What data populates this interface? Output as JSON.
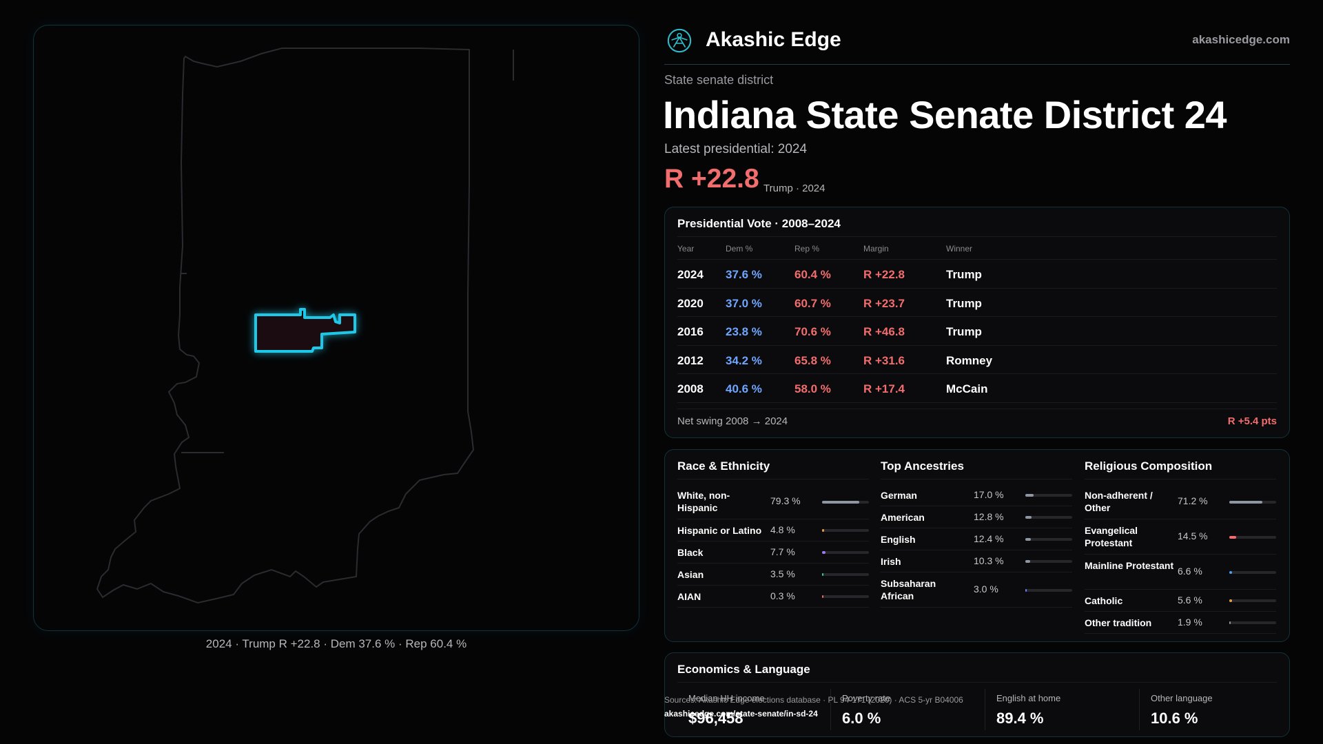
{
  "brand": {
    "name": "Akashic Edge",
    "url": "akashicedge.com"
  },
  "header": {
    "kicker": "State senate district",
    "title": "Indiana State Senate District 24",
    "latest": "Latest presidential: 2024",
    "margin": "R +22.8",
    "margin_sub": "Trump · 2024"
  },
  "map": {
    "caption": "2024 · Trump R +22.8 · Dem 37.6 % · Rep 60.4 %",
    "colors": {
      "outline": "#2b2b30",
      "district_stroke": "#1ec8e6",
      "district_fill": "#1a0c10"
    }
  },
  "presidential": {
    "title": "Presidential Vote · 2008–2024",
    "columns": [
      "Year",
      "Dem %",
      "Rep %",
      "Margin",
      "Winner"
    ],
    "rows": [
      {
        "year": "2024",
        "dem": "37.6 %",
        "rep": "60.4 %",
        "margin": "R +22.8",
        "winner": "Trump"
      },
      {
        "year": "2020",
        "dem": "37.0 %",
        "rep": "60.7 %",
        "margin": "R +23.7",
        "winner": "Trump"
      },
      {
        "year": "2016",
        "dem": "23.8 %",
        "rep": "70.6 %",
        "margin": "R +46.8",
        "winner": "Trump"
      },
      {
        "year": "2012",
        "dem": "34.2 %",
        "rep": "65.8 %",
        "margin": "R +31.6",
        "winner": "Romney"
      },
      {
        "year": "2008",
        "dem": "40.6 %",
        "rep": "58.0 %",
        "margin": "R +17.4",
        "winner": "McCain"
      }
    ],
    "swing_label": "Net swing 2008 → 2024",
    "swing_value": "R +5.4 pts"
  },
  "demographics": {
    "race": {
      "title": "Race & Ethnicity",
      "items": [
        {
          "label": "White, non-Hispanic",
          "pct": "79.3 %",
          "value": 79.3,
          "color": "#8f96a3",
          "tall": true
        },
        {
          "label": "Hispanic or Latino",
          "pct": "4.8 %",
          "value": 4.8,
          "color": "#e0a040",
          "tall": false
        },
        {
          "label": "Black",
          "pct": "7.7 %",
          "value": 7.7,
          "color": "#9a7cf0",
          "tall": false
        },
        {
          "label": "Asian",
          "pct": "3.5 %",
          "value": 3.5,
          "color": "#3ec9a0",
          "tall": false
        },
        {
          "label": "AIAN",
          "pct": "0.3 %",
          "value": 0.3,
          "color": "#e07060",
          "tall": false
        }
      ]
    },
    "ancestry": {
      "title": "Top Ancestries",
      "items": [
        {
          "label": "German",
          "pct": "17.0 %",
          "value": 17.0,
          "color": "#8f96a3",
          "tall": false
        },
        {
          "label": "American",
          "pct": "12.8 %",
          "value": 12.8,
          "color": "#8f96a3",
          "tall": false
        },
        {
          "label": "English",
          "pct": "12.4 %",
          "value": 12.4,
          "color": "#8f96a3",
          "tall": false
        },
        {
          "label": "Irish",
          "pct": "10.3 %",
          "value": 10.3,
          "color": "#8f96a3",
          "tall": false
        },
        {
          "label": "Subsaharan African",
          "pct": "3.0 %",
          "value": 3.0,
          "color": "#6f7df0",
          "tall": true
        }
      ]
    },
    "religion": {
      "title": "Religious Composition",
      "items": [
        {
          "label": "Non-adherent / Other",
          "pct": "71.2 %",
          "value": 71.2,
          "color": "#8f96a3",
          "tall": true
        },
        {
          "label": "Evangelical Protestant",
          "pct": "14.5 %",
          "value": 14.5,
          "color": "#f26d6d",
          "tall": true
        },
        {
          "label": "Mainline Protestant",
          "pct": "6.6 %",
          "value": 6.6,
          "color": "#4a9cf0",
          "tall": true
        },
        {
          "label": "Catholic",
          "pct": "5.6 %",
          "value": 5.6,
          "color": "#e0a040",
          "tall": false
        },
        {
          "label": "Other tradition",
          "pct": "1.9 %",
          "value": 1.9,
          "color": "#8f96a3",
          "tall": false
        }
      ]
    }
  },
  "economics": {
    "title": "Economics & Language",
    "cells": [
      {
        "label": "Median HH income",
        "value": "$96,458"
      },
      {
        "label": "Poverty rate",
        "value": "6.0 %"
      },
      {
        "label": "English at home",
        "value": "89.4 %"
      },
      {
        "label": "Other language",
        "value": "10.6 %"
      }
    ]
  },
  "source": {
    "text": "Sources: Akashic Edge elections database · PL 94-171 (2020) · ACS 5-yr B04006",
    "url": "akashicedge.com/state-senate/in-sd-24"
  }
}
